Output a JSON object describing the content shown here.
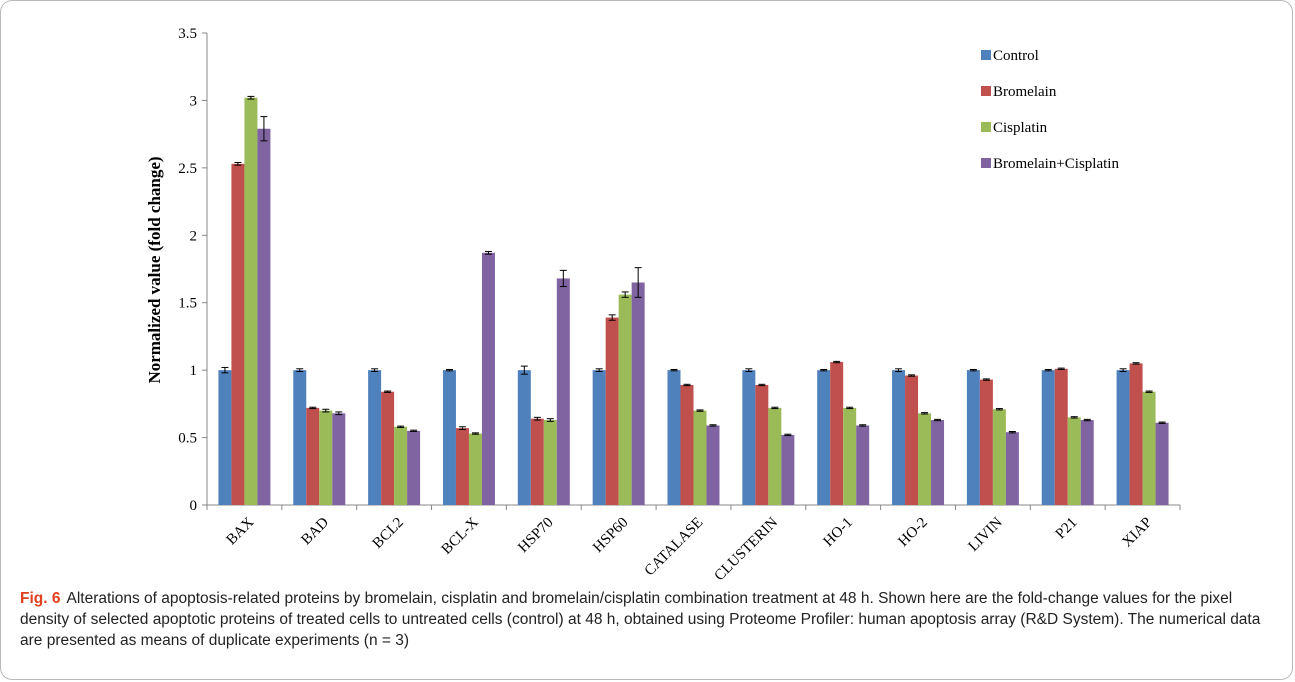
{
  "figure": {
    "label": "Fig. 6",
    "caption": "Alterations of apoptosis-related proteins by bromelain, cisplatin and bromelain/cisplatin combination treatment at 48 h. Shown here are the fold-change values for the pixel density of selected apoptotic proteins of treated cells to untreated cells (control) at 48 h, obtained using Proteome Profiler: human apoptosis array (R&D System). The numerical data are presented as means of duplicate experiments (n = 3)"
  },
  "chart_data": {
    "type": "bar",
    "title": "",
    "xlabel": "",
    "ylabel": "Normalized value (fold change)",
    "ylim": [
      0,
      3.5
    ],
    "yticks": [
      0,
      0.5,
      1,
      1.5,
      2,
      2.5,
      3,
      3.5
    ],
    "ytick_labels": [
      "0",
      "0.5",
      "1",
      "1.5",
      "2",
      "2.5",
      "3",
      "3.5"
    ],
    "grid": false,
    "legend_position": "top-right",
    "categories": [
      "BAX",
      "BAD",
      "BCL2",
      "BCL-X",
      "HSP70",
      "HSP60",
      "CATALASE",
      "CLUSTERIN",
      "HO-1",
      "HO-2",
      "LIVIN",
      "P21",
      "XIAP"
    ],
    "series": [
      {
        "name": "Control",
        "color": "#4f81bd",
        "values": [
          1.0,
          1.0,
          1.0,
          1.0,
          1.0,
          1.0,
          1.0,
          1.0,
          1.0,
          1.0,
          1.0,
          1.0,
          1.0
        ],
        "errors": [
          0.02,
          0.01,
          0.01,
          0.005,
          0.03,
          0.01,
          0.005,
          0.01,
          0.005,
          0.01,
          0.005,
          0.005,
          0.01
        ]
      },
      {
        "name": "Bromelain",
        "color": "#c0504d",
        "values": [
          2.53,
          0.72,
          0.84,
          0.57,
          0.64,
          1.39,
          0.89,
          0.89,
          1.06,
          0.96,
          0.93,
          1.01,
          1.05
        ],
        "errors": [
          0.01,
          0.005,
          0.005,
          0.01,
          0.01,
          0.02,
          0.005,
          0.005,
          0.005,
          0.005,
          0.005,
          0.005,
          0.005
        ]
      },
      {
        "name": "Cisplatin",
        "color": "#9bbb59",
        "values": [
          3.02,
          0.7,
          0.58,
          0.53,
          0.63,
          1.56,
          0.7,
          0.72,
          0.72,
          0.68,
          0.71,
          0.65,
          0.84
        ],
        "errors": [
          0.01,
          0.01,
          0.005,
          0.005,
          0.01,
          0.02,
          0.005,
          0.005,
          0.005,
          0.005,
          0.005,
          0.005,
          0.005
        ]
      },
      {
        "name": "Bromelain+Cisplatin",
        "color": "#8064a2",
        "values": [
          2.79,
          0.68,
          0.55,
          1.87,
          1.68,
          1.65,
          0.59,
          0.52,
          0.59,
          0.63,
          0.54,
          0.63,
          0.61
        ],
        "errors": [
          0.09,
          0.01,
          0.005,
          0.01,
          0.06,
          0.11,
          0.005,
          0.005,
          0.005,
          0.005,
          0.005,
          0.005,
          0.005
        ]
      }
    ]
  }
}
